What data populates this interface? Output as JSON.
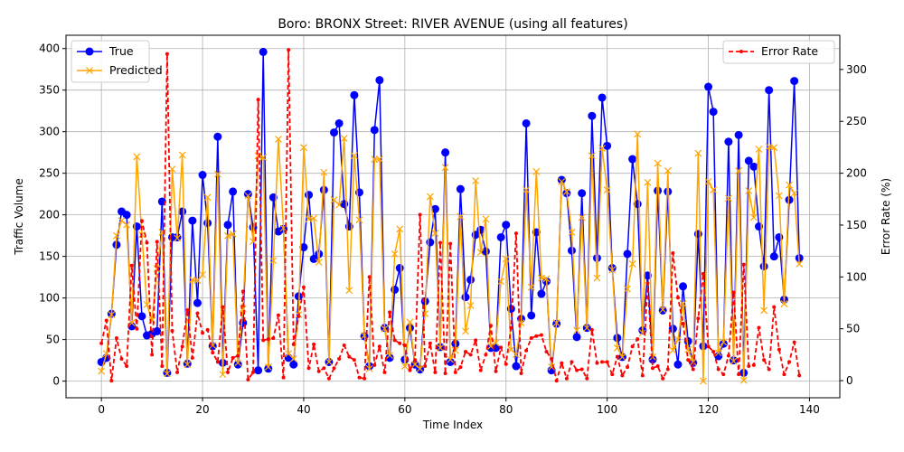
{
  "chart_data": {
    "type": "line",
    "title": "Boro: BRONX Street: RIVER AVENUE (using all features)",
    "xlabel": "Time Index",
    "ylabel": "Traffic Volume",
    "y2label": "Error Rate (%)",
    "xlim": [
      -7,
      146
    ],
    "ylim": [
      -20,
      416
    ],
    "y2lim": [
      -16.5,
      333
    ],
    "xticks": [
      0,
      20,
      40,
      60,
      80,
      100,
      120,
      140
    ],
    "yticks": [
      0,
      50,
      100,
      150,
      200,
      250,
      300,
      350,
      400
    ],
    "y2ticks": [
      0,
      50,
      100,
      150,
      200,
      250,
      300
    ],
    "grid": true,
    "legend_left": "top-left",
    "legend_right": "top-right",
    "colors": {
      "true": "#0000ff",
      "predicted": "#ffa500",
      "error": "#ff0000"
    },
    "series": [
      {
        "name": "True",
        "values": [
          23,
          28,
          81,
          164,
          204,
          200,
          66,
          186,
          78,
          55,
          57,
          60,
          216,
          10,
          173,
          173,
          204,
          21,
          193,
          94,
          248,
          190,
          42,
          294,
          22,
          188,
          228,
          20,
          70,
          225,
          185,
          13,
          396,
          15,
          221,
          180,
          183,
          28,
          20,
          102,
          161,
          224,
          147,
          153,
          230,
          23,
          299,
          310,
          213,
          186,
          344,
          227,
          54,
          18,
          302,
          362,
          64,
          28,
          110,
          136,
          26,
          64,
          20,
          14,
          96,
          167,
          207,
          41,
          275,
          23,
          45,
          231,
          101,
          122,
          176,
          182,
          156,
          40,
          40,
          173,
          188,
          87,
          18,
          75,
          310,
          79,
          179,
          105,
          120,
          13,
          69,
          242,
          226,
          157,
          53,
          226,
          64,
          319,
          148,
          341,
          283,
          136,
          52,
          29,
          153,
          267,
          213,
          61,
          127,
          26,
          229,
          85,
          228,
          63,
          20,
          114,
          48,
          22,
          177,
          42,
          354,
          324,
          30,
          45,
          288,
          25,
          296,
          10,
          265,
          258,
          186,
          138,
          350,
          150,
          173,
          98,
          218,
          361,
          148
        ]
      },
      {
        "name": "Predicted",
        "values": [
          12,
          33,
          80,
          175,
          193,
          188,
          70,
          270,
          176,
          92,
          73,
          135,
          179,
          9,
          255,
          172,
          272,
          20,
          122,
          121,
          128,
          221,
          43,
          249,
          8,
          175,
          177,
          22,
          87,
          223,
          168,
          271,
          269,
          17,
          145,
          291,
          184,
          33,
          27,
          80,
          281,
          195,
          196,
          143,
          251,
          23,
          218,
          212,
          292,
          109,
          271,
          194,
          55,
          15,
          267,
          267,
          63,
          31,
          153,
          183,
          18,
          71,
          20,
          15,
          81,
          222,
          178,
          40,
          257,
          26,
          37,
          198,
          60,
          91,
          241,
          155,
          195,
          42,
          46,
          120,
          147,
          38,
          32,
          70,
          230,
          113,
          252,
          124,
          123,
          17,
          70,
          240,
          228,
          179,
          61,
          197,
          64,
          271,
          124,
          280,
          230,
          134,
          40,
          29,
          111,
          141,
          297,
          58,
          239,
          29,
          262,
          86,
          253,
          37,
          50,
          93,
          38,
          23,
          274,
          0,
          240,
          230,
          34,
          47,
          220,
          24,
          253,
          1,
          229,
          197,
          279,
          85,
          282,
          281,
          223,
          93,
          236,
          226,
          141
        ]
      },
      {
        "name": "Error Rate",
        "axis": "right",
        "values": [
          36,
          58,
          0,
          41,
          21,
          14,
          111,
          50,
          154,
          133,
          25,
          134,
          14,
          315,
          48,
          8,
          33,
          68,
          22,
          65,
          46,
          49,
          27,
          18,
          71,
          8,
          22,
          24,
          86,
          1,
          8,
          271,
          39,
          40,
          41,
          63,
          3,
          319,
          35,
          62,
          90,
          12,
          35,
          9,
          12,
          2,
          12,
          21,
          34,
          23,
          20,
          3,
          2,
          100,
          15,
          33,
          8,
          66,
          39,
          36,
          34,
          10,
          20,
          160,
          14,
          36,
          8,
          133,
          7,
          132,
          8,
          13,
          28,
          25,
          39,
          10,
          25,
          53,
          9,
          32,
          16,
          51,
          142,
          7,
          29,
          41,
          43,
          44,
          28,
          21,
          0,
          17,
          2,
          18,
          10,
          11,
          2,
          49,
          17,
          18,
          18,
          6,
          23,
          5,
          13,
          33,
          40,
          5,
          94,
          12,
          14,
          2,
          11,
          123,
          80,
          55,
          20,
          11,
          60,
          103,
          33,
          28,
          11,
          6,
          24,
          85,
          6,
          112,
          14,
          15,
          51,
          20,
          11,
          71,
          30,
          6,
          18,
          37,
          5
        ]
      }
    ]
  }
}
